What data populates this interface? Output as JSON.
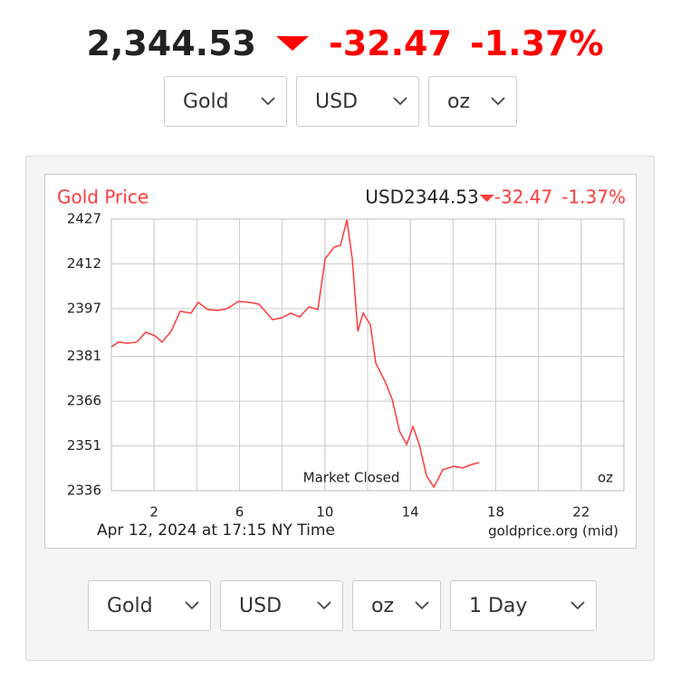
{
  "header": {
    "price": "2,344.53",
    "change": "-32.47",
    "percent": "-1.37%"
  },
  "top_selectors": [
    "Gold",
    "USD",
    "oz"
  ],
  "bottom_selectors": [
    "Gold",
    "USD",
    "oz",
    "1 Day"
  ],
  "chart_data": {
    "type": "line",
    "title": "Gold Price",
    "price_label": "USD2344.53",
    "change": "-32.47",
    "percent": "-1.37%",
    "annotations": [
      "Market Closed",
      "oz"
    ],
    "footer_left": "Apr 12, 2024 at 17:15 NY Time",
    "footer_right": "goldprice.org (mid)",
    "xlim": [
      0,
      24
    ],
    "xticks": [
      2,
      6,
      10,
      14,
      18,
      22
    ],
    "ylim": [
      2336,
      2427
    ],
    "yticks": [
      2336,
      2351,
      2366,
      2381,
      2397,
      2412,
      2427
    ],
    "grid": true,
    "series": [
      {
        "name": "Gold Price",
        "color": "#ff3b3b",
        "x": [
          0,
          0.34,
          0.76,
          1.19,
          1.61,
          2.04,
          2.37,
          2.8,
          3.22,
          3.73,
          4.07,
          4.5,
          5.0,
          5.43,
          5.94,
          6.49,
          6.91,
          7.55,
          7.97,
          8.4,
          8.82,
          9.25,
          9.67,
          10.01,
          10.43,
          10.73,
          11.03,
          11.28,
          11.54,
          11.79,
          12.13,
          12.38,
          12.81,
          13.15,
          13.49,
          13.83,
          14.12,
          14.42,
          14.76,
          15.1,
          15.52,
          16.03,
          16.45,
          16.88,
          17.22
        ],
        "values": [
          2384.2,
          2385.8,
          2385.4,
          2385.8,
          2389.1,
          2387.9,
          2385.8,
          2389.4,
          2396.1,
          2395.5,
          2399.1,
          2396.7,
          2396.4,
          2397.0,
          2399.4,
          2399.1,
          2398.5,
          2393.3,
          2393.9,
          2395.5,
          2394.2,
          2397.6,
          2396.7,
          2413.7,
          2417.6,
          2418.2,
          2426.7,
          2413.7,
          2389.4,
          2395.5,
          2391.5,
          2378.8,
          2372.7,
          2366.6,
          2356.0,
          2351.5,
          2357.5,
          2351.5,
          2340.9,
          2337.2,
          2343.0,
          2344.2,
          2343.6,
          2344.8,
          2345.4
        ]
      }
    ]
  }
}
